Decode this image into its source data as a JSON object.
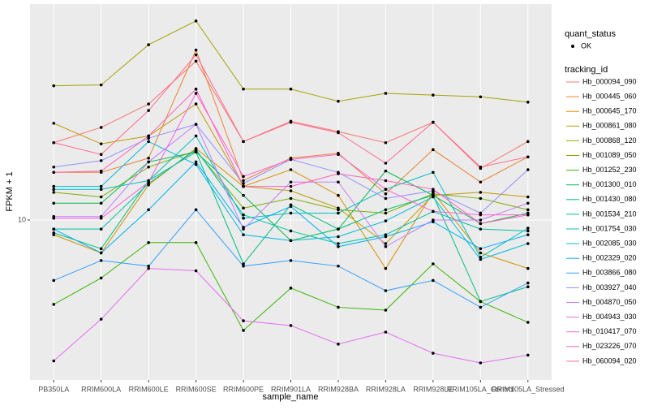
{
  "chart_data": {
    "type": "line",
    "log_y": true,
    "grid": true,
    "x_label": "sample_name",
    "y_label": "FPKM + 1",
    "categories": [
      "PB350LA",
      "RRIM600LA",
      "RRIM600LE",
      "RRIM600SE",
      "RRIM600PE",
      "RRIM901LA",
      "RRIM928BA",
      "RRIM928LA",
      "RRIM928LE",
      "RRIM105LA_Control",
      "RRIM105LA_Stressed"
    ],
    "ylim": [
      4.04,
      34.0
    ],
    "yticks": [
      10
    ],
    "shape_legend": {
      "title": "quant_status",
      "labels": [
        "OK"
      ]
    },
    "legend_title": "tracking_id",
    "series": [
      {
        "name": "Hb_000094_090",
        "color": "#F8766D",
        "values": [
          15.5,
          16.9,
          19.3,
          24.6,
          15.6,
          17.5,
          16.5,
          15.5,
          17.4,
          13.4,
          15.6
        ]
      },
      {
        "name": "Hb_000445_060",
        "color": "#EA8331",
        "values": [
          13.1,
          13.1,
          14.2,
          26.2,
          12.5,
          14.2,
          14.6,
          11.6,
          14.9,
          12.4,
          14.3
        ]
      },
      {
        "name": "Hb_000645_170",
        "color": "#D89000",
        "values": [
          9.2,
          8.3,
          12.2,
          15.0,
          12.1,
          13.3,
          11.5,
          7.6,
          11.7,
          8.3,
          7.6
        ]
      },
      {
        "name": "Hb_000861_080",
        "color": "#C09B00",
        "values": [
          17.3,
          15.4,
          16.1,
          19.3,
          12.1,
          11.8,
          10.7,
          8.75,
          11.5,
          11.7,
          11.4
        ]
      },
      {
        "name": "Hb_000868_120",
        "color": "#A3A500",
        "values": [
          21.4,
          21.5,
          27.0,
          30.9,
          21.0,
          21.0,
          19.6,
          20.5,
          20.3,
          20.1,
          19.5
        ]
      },
      {
        "name": "Hb_001089_050",
        "color": "#7CAE00",
        "values": [
          11.7,
          11.4,
          13.5,
          14.8,
          10.7,
          11.3,
          10.6,
          10.4,
          11.6,
          11.3,
          10.6
        ]
      },
      {
        "name": "Hb_001252_230",
        "color": "#39B600",
        "values": [
          6.2,
          7.2,
          8.8,
          8.8,
          5.35,
          6.8,
          6.1,
          6.0,
          7.8,
          6.3,
          5.6
        ]
      },
      {
        "name": "Hb_001300_010",
        "color": "#00BB4E",
        "values": [
          11.0,
          11.0,
          13.9,
          14.7,
          11.5,
          8.9,
          9.5,
          13.2,
          11.5,
          9.8,
          10.4
        ]
      },
      {
        "name": "Hb_001430_080",
        "color": "#00BF7D",
        "values": [
          9.3,
          8.5,
          12.5,
          14.7,
          7.8,
          10.9,
          9.5,
          10.6,
          11.5,
          6.3,
          6.85
        ]
      },
      {
        "name": "Hb_001534_210",
        "color": "#00C1A3",
        "values": [
          9.5,
          9.5,
          12.3,
          14.9,
          10.3,
          9.4,
          8.75,
          9.2,
          10.5,
          9.5,
          9.4
        ]
      },
      {
        "name": "Hb_001754_030",
        "color": "#00BFC4",
        "values": [
          11.9,
          11.9,
          12.5,
          16.1,
          10.1,
          10.4,
          10.4,
          11.9,
          13.1,
          8.1,
          9.55
        ]
      },
      {
        "name": "Hb_002085_030",
        "color": "#00BAE0",
        "values": [
          12.1,
          12.1,
          15.6,
          13.7,
          9.2,
          8.9,
          9.1,
          9.95,
          11.4,
          8.0,
          8.75
        ]
      },
      {
        "name": "Hb_002329_020",
        "color": "#00B0F6",
        "values": [
          9.5,
          8.3,
          10.6,
          13.9,
          9.6,
          10.8,
          8.6,
          9.1,
          9.9,
          8.5,
          9.2
        ]
      },
      {
        "name": "Hb_003866_080",
        "color": "#35A2FF",
        "values": [
          7.1,
          7.95,
          7.7,
          10.6,
          7.7,
          7.95,
          7.7,
          6.7,
          7.1,
          6.1,
          7.0
        ]
      },
      {
        "name": "Hb_003927_040",
        "color": "#9590FF",
        "values": [
          13.5,
          14.0,
          15.9,
          17.2,
          12.3,
          14.1,
          13.1,
          11.3,
          11.8,
          10.4,
          13.3
        ]
      },
      {
        "name": "Hb_004870_050",
        "color": "#C77CFF",
        "values": [
          10.2,
          10.2,
          13.9,
          17.2,
          9.5,
          12.4,
          12.4,
          8.6,
          10.0,
          10.0,
          11.0
        ]
      },
      {
        "name": "Hb_004943_030",
        "color": "#E76BF3",
        "values": [
          4.5,
          5.7,
          7.6,
          7.5,
          5.65,
          5.5,
          4.95,
          5.3,
          4.7,
          4.45,
          4.65
        ]
      },
      {
        "name": "Hb_010417_070",
        "color": "#FA62DB",
        "values": [
          10.1,
          10.1,
          12.4,
          20.5,
          12.8,
          14.1,
          14.5,
          11.9,
          10.5,
          10.3,
          10.3
        ]
      },
      {
        "name": "Hb_023226_070",
        "color": "#FF62BC",
        "values": [
          13.1,
          13.2,
          16.1,
          21.0,
          12.1,
          12.1,
          13.0,
          12.5,
          11.9,
          9.8,
          10.3
        ]
      },
      {
        "name": "Hb_060094_020",
        "color": "#FF6C91",
        "values": [
          15.5,
          14.5,
          18.6,
          25.5,
          15.6,
          17.4,
          16.4,
          13.8,
          17.4,
          13.5,
          14.3
        ]
      }
    ]
  }
}
